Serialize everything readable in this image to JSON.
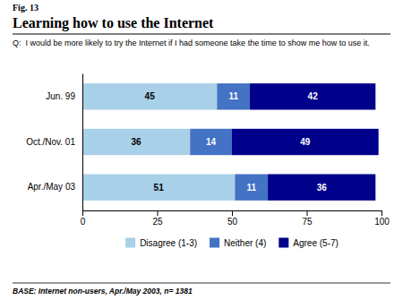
{
  "chart_data": {
    "type": "bar",
    "orientation": "horizontal",
    "stacked": true,
    "data_labels": true,
    "title": "Learning how to use the Internet",
    "subtitle": "Q:  I would be more likely to try the Internet if I had someone take the time to show me how to use it.",
    "annotations": [
      "Fig. 13",
      "BASE: Internet non-users, Apr./May 2003, n= 1381"
    ],
    "categories": [
      "Jun. 99",
      "Oct./Nov. 01",
      "Apr./May 03"
    ],
    "series": [
      {
        "name": "Disagree (1-3)",
        "color": "#a8d0e8",
        "values": [
          45,
          36,
          51
        ]
      },
      {
        "name": "Neither (4)",
        "color": "#4472c4",
        "values": [
          11,
          14,
          11
        ]
      },
      {
        "name": "Agree (5-7)",
        "color": "#00008b",
        "values": [
          42,
          49,
          36
        ]
      }
    ],
    "xlim": [
      0,
      100
    ],
    "xticks": [
      0,
      25,
      50,
      75,
      100
    ],
    "grid": false,
    "legend": "bottom"
  }
}
